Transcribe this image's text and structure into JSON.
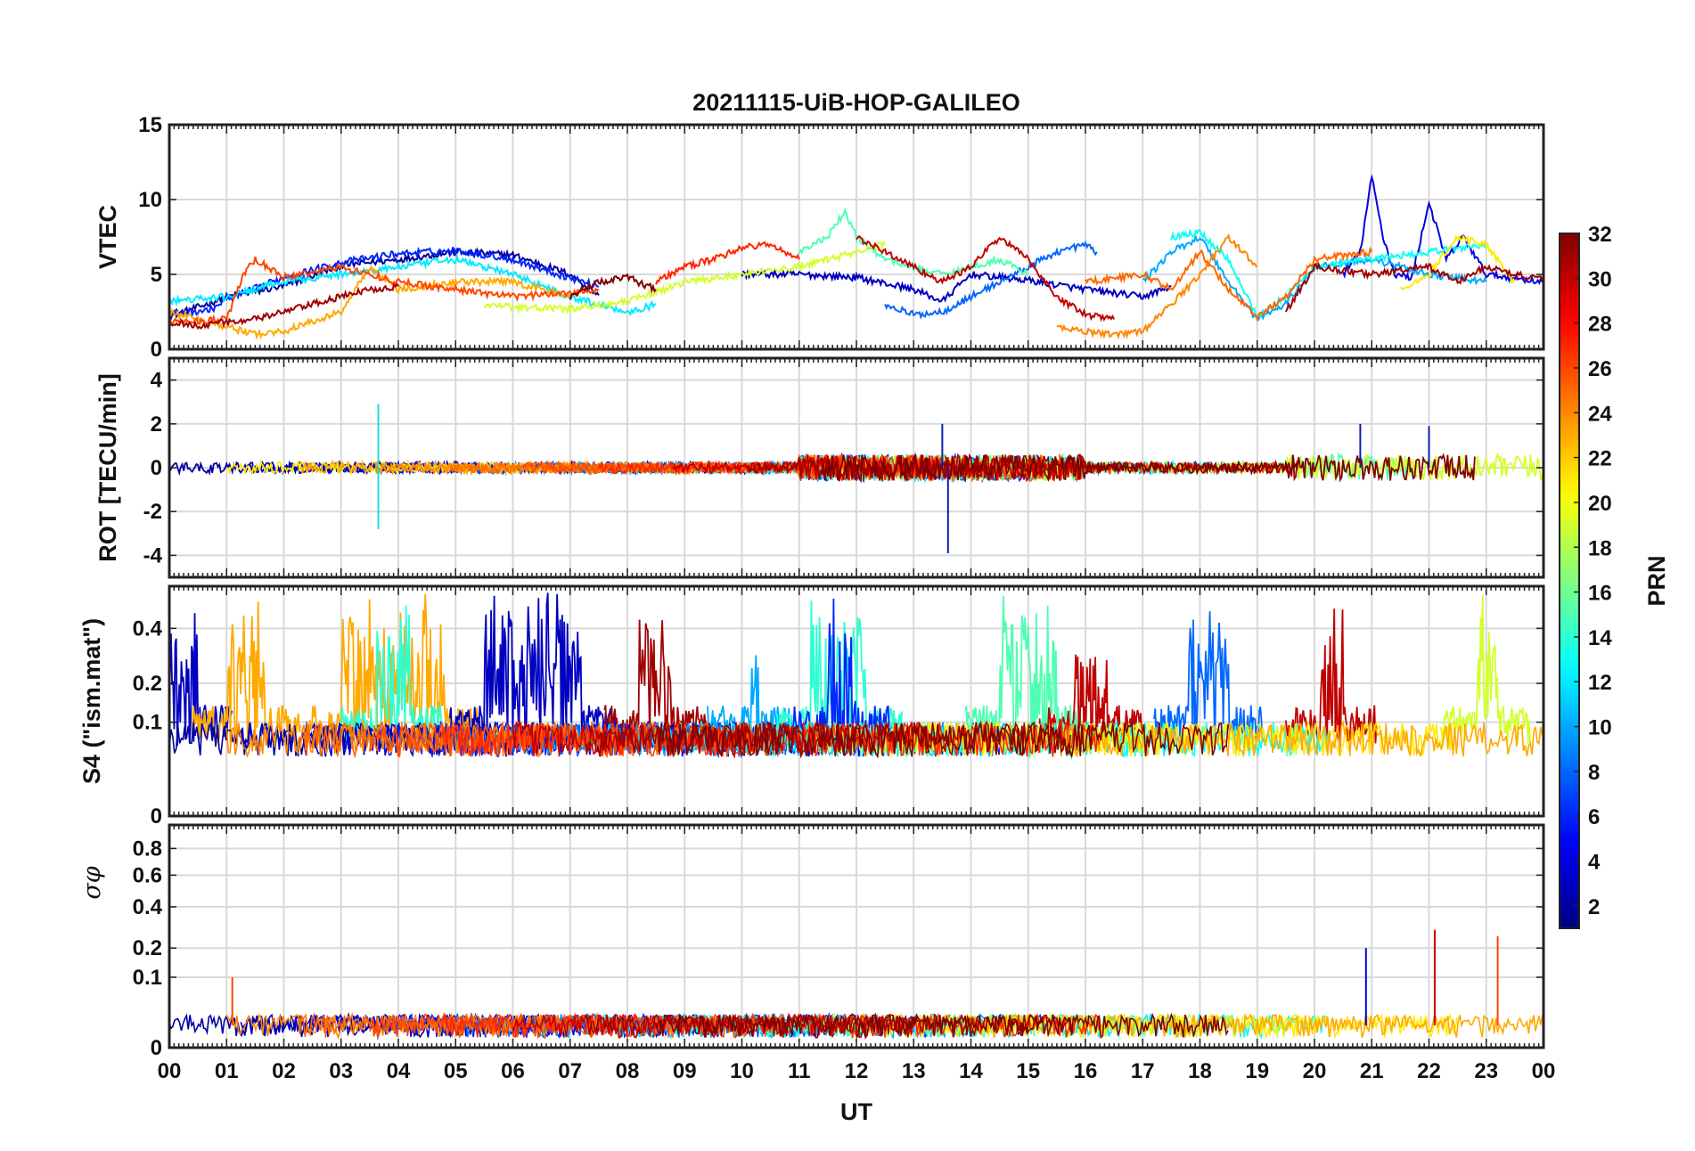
{
  "chart_data": {
    "type": "line",
    "title": "20211115-UiB-HOP-GALILEO",
    "xlabel": "UT",
    "x_range_hours": [
      0,
      24
    ],
    "x_tick_labels": [
      "00",
      "01",
      "02",
      "03",
      "04",
      "05",
      "06",
      "07",
      "08",
      "09",
      "10",
      "11",
      "12",
      "13",
      "14",
      "15",
      "16",
      "17",
      "18",
      "19",
      "20",
      "21",
      "22",
      "23",
      "00"
    ],
    "grid": true,
    "panels": [
      {
        "id": "vtec",
        "ylabel": "VTEC",
        "ylim": [
          0,
          15
        ],
        "yticks": [
          0,
          5,
          10,
          15
        ],
        "ytick_labels": [
          "0",
          "5",
          "10",
          "15"
        ],
        "series": [
          {
            "prn": 2,
            "x": [
              0.0,
              0.5,
              1.0,
              2.0,
              3.0,
              4.0,
              5.0,
              6.0,
              7.0,
              7.5
            ],
            "y": [
              2.2,
              2.8,
              3.5,
              4.2,
              5.6,
              6.0,
              6.5,
              6.3,
              5.0,
              3.6
            ]
          },
          {
            "prn": 3,
            "x": [
              10.0,
              11.0,
              12.0,
              13.0,
              13.5,
              14.0,
              15.0,
              16.0,
              17.0,
              17.5
            ],
            "y": [
              5.0,
              5.0,
              4.8,
              4.0,
              3.2,
              5.0,
              4.6,
              4.0,
              3.5,
              4.2
            ]
          },
          {
            "prn": 4,
            "x": [
              20.5,
              20.8,
              21.0,
              21.2,
              21.4,
              21.7,
              22.0,
              22.3,
              22.6,
              23.0,
              24.0
            ],
            "y": [
              5.0,
              6.5,
              11.5,
              7.5,
              5.0,
              4.8,
              9.8,
              6.0,
              7.5,
              5.0,
              4.5
            ]
          },
          {
            "prn": 6,
            "x": [
              0.0,
              0.7,
              1.0,
              2.0,
              3.0,
              4.0,
              5.0,
              6.0,
              6.8,
              7.5
            ],
            "y": [
              2.4,
              2.6,
              3.3,
              4.8,
              5.8,
              6.4,
              6.6,
              6.0,
              5.0,
              4.2
            ]
          },
          {
            "prn": 8,
            "x": [
              12.5,
              13.0,
              13.5,
              14.0,
              14.5,
              15.0,
              15.5,
              16.0,
              16.2
            ],
            "y": [
              3.0,
              2.3,
              2.5,
              3.5,
              4.5,
              5.5,
              6.5,
              7.0,
              6.5
            ]
          },
          {
            "prn": 10,
            "x": [
              17.0,
              17.5,
              18.0,
              18.5,
              19.0,
              19.5,
              20.0,
              21.0,
              22.0,
              23.0
            ],
            "y": [
              4.5,
              6.5,
              7.5,
              4.5,
              2.0,
              3.0,
              5.5,
              6.0,
              5.0,
              4.5
            ]
          },
          {
            "prn": 12,
            "x": [
              0.0,
              1.0,
              2.0,
              3.0,
              4.0,
              5.0,
              6.0,
              7.0,
              8.0,
              8.5
            ],
            "y": [
              3.2,
              3.5,
              4.5,
              5.0,
              5.5,
              6.0,
              5.0,
              3.5,
              2.5,
              3.0
            ]
          },
          {
            "prn": 13,
            "x": [
              17.5,
              18.0,
              18.5,
              19.0,
              19.5,
              20.0,
              21.0,
              22.0,
              23.0
            ],
            "y": [
              7.5,
              7.8,
              6.0,
              2.2,
              3.5,
              5.5,
              6.0,
              6.5,
              7.0
            ]
          },
          {
            "prn": 15,
            "x": [
              11.0,
              11.5,
              11.8,
              12.0,
              12.5,
              13.0,
              13.5,
              14.0,
              14.5,
              15.0
            ],
            "y": [
              6.5,
              7.5,
              9.2,
              7.5,
              6.0,
              5.5,
              5.0,
              5.5,
              6.0,
              5.0
            ]
          },
          {
            "prn": 19,
            "x": [
              5.5,
              6.0,
              7.0,
              8.0,
              8.5,
              9.0,
              10.0,
              11.0,
              12.0,
              12.5
            ],
            "y": [
              3.0,
              2.8,
              2.7,
              3.2,
              3.8,
              4.5,
              5.0,
              5.5,
              6.5,
              7.0
            ]
          },
          {
            "prn": 21,
            "x": [
              21.5,
              22.0,
              22.5,
              23.0,
              23.5
            ],
            "y": [
              4.0,
              5.0,
              7.5,
              7.0,
              4.5
            ]
          },
          {
            "prn": 23,
            "x": [
              0.0,
              1.0,
              1.5,
              2.0,
              3.0,
              3.5,
              4.0,
              5.0,
              6.0,
              7.0
            ],
            "y": [
              2.5,
              1.5,
              1.0,
              1.2,
              2.5,
              5.5,
              4.0,
              4.5,
              4.5,
              3.5
            ]
          },
          {
            "prn": 24,
            "x": [
              15.5,
              16.0,
              16.5,
              17.0,
              17.5,
              18.0,
              18.5,
              19.0
            ],
            "y": [
              1.5,
              1.2,
              1.0,
              1.2,
              3.0,
              5.0,
              7.5,
              5.5
            ]
          },
          {
            "prn": 25,
            "x": [
              16.0,
              17.0,
              17.5,
              18.0,
              18.5,
              19.0,
              19.5,
              20.0,
              21.0
            ],
            "y": [
              4.5,
              5.0,
              4.0,
              6.5,
              4.0,
              2.2,
              3.5,
              6.0,
              6.5
            ]
          },
          {
            "prn": 26,
            "x": [
              0.0,
              1.0,
              1.3,
              1.5,
              2.0,
              3.0,
              3.5,
              4.0,
              5.0,
              6.0,
              7.0,
              7.5
            ],
            "y": [
              1.8,
              2.0,
              5.0,
              6.0,
              4.8,
              5.5,
              5.0,
              4.5,
              4.0,
              3.5,
              3.8,
              4.0
            ]
          },
          {
            "prn": 27,
            "x": [
              8.5,
              9.0,
              9.5,
              10.0,
              10.5,
              11.0
            ],
            "y": [
              4.5,
              5.5,
              6.0,
              6.8,
              7.0,
              6.0
            ]
          },
          {
            "prn": 30,
            "x": [
              12.0,
              12.5,
              13.0,
              13.5,
              14.0,
              14.5,
              15.0,
              15.5,
              16.0,
              16.5
            ],
            "y": [
              7.5,
              6.5,
              5.5,
              4.5,
              5.5,
              7.5,
              6.0,
              3.5,
              2.3,
              2.0
            ]
          },
          {
            "prn": 31,
            "x": [
              0.0,
              0.5,
              1.0,
              1.5,
              2.0,
              2.5,
              3.0,
              3.5,
              4.0
            ],
            "y": [
              1.8,
              1.6,
              1.8,
              2.0,
              2.5,
              3.0,
              3.5,
              4.0,
              4.2
            ]
          },
          {
            "prn": 32,
            "x": [
              7.0,
              7.5,
              8.0,
              8.5
            ],
            "y": [
              3.5,
              4.5,
              4.8,
              4.0
            ]
          },
          {
            "prn": 31,
            "x": [
              19.5,
              20.0,
              21.0,
              22.0,
              22.5,
              23.0,
              23.5,
              24.0
            ],
            "y": [
              2.5,
              5.5,
              5.0,
              5.5,
              4.5,
              5.5,
              5.0,
              4.6
            ]
          }
        ]
      },
      {
        "id": "rot",
        "ylabel": "ROT [TECU/min]",
        "ylim": [
          -5,
          5
        ],
        "yticks": [
          -4,
          -2,
          0,
          2,
          4
        ],
        "ytick_labels": [
          "-4",
          "-2",
          "0",
          "2",
          "4"
        ],
        "summary": "Fluctuations mostly within ±0.5 TECU/min around zero; spikes to about +3 and -2.8 near 03:40 UT, about +2 and -4 near 13:30 UT, and about ±2 near 21-22 UT.",
        "highlights": [
          {
            "x": 3.65,
            "y": 2.9
          },
          {
            "x": 3.65,
            "y": -2.8
          },
          {
            "x": 13.5,
            "y": 2.0
          },
          {
            "x": 13.6,
            "y": -3.9
          },
          {
            "x": 20.8,
            "y": 2.0
          },
          {
            "x": 22.0,
            "y": 1.9
          }
        ]
      },
      {
        "id": "s4",
        "ylabel": "S4 (\"ism.mat\")",
        "ylim": [
          0,
          0.6
        ],
        "yticks": [
          0,
          0.1,
          0.2,
          0.4
        ],
        "ytick_labels": [
          "0",
          "0.1",
          "0.2",
          "0.4"
        ],
        "note": "Y axis appears square-root scaled.",
        "summary": "Background S4 around 0.05-0.1; bursts reaching 0.4-0.6 near 00-01, 01-02, 03-05, 06-07, 08-09, 11-12, 14-15, 18 and 23 UT."
      },
      {
        "id": "sigma_phi",
        "ylabel": "σφ",
        "ylim": [
          0,
          1.0
        ],
        "yticks": [
          0,
          0.1,
          0.2,
          0.4,
          0.6,
          0.8
        ],
        "ytick_labels": [
          "0",
          "0.1",
          "0.2",
          "0.4",
          "0.6",
          "0.8"
        ],
        "note": "Y axis appears square-root scaled.",
        "summary": "Values below about 0.05 most of the day; spikes to about 0.2 near 21 UT, about 0.28 near 22:10 UT and about 0.25 near 23:15 UT."
      }
    ],
    "colorbar": {
      "label": "PRN",
      "range": [
        1,
        32
      ],
      "ticks": [
        2,
        4,
        6,
        8,
        10,
        12,
        14,
        16,
        18,
        20,
        22,
        24,
        26,
        28,
        30,
        32
      ],
      "tick_labels": [
        "2",
        "4",
        "6",
        "8",
        "10",
        "12",
        "14",
        "16",
        "18",
        "20",
        "22",
        "24",
        "26",
        "28",
        "30",
        "32"
      ],
      "colormap": "jet"
    }
  }
}
